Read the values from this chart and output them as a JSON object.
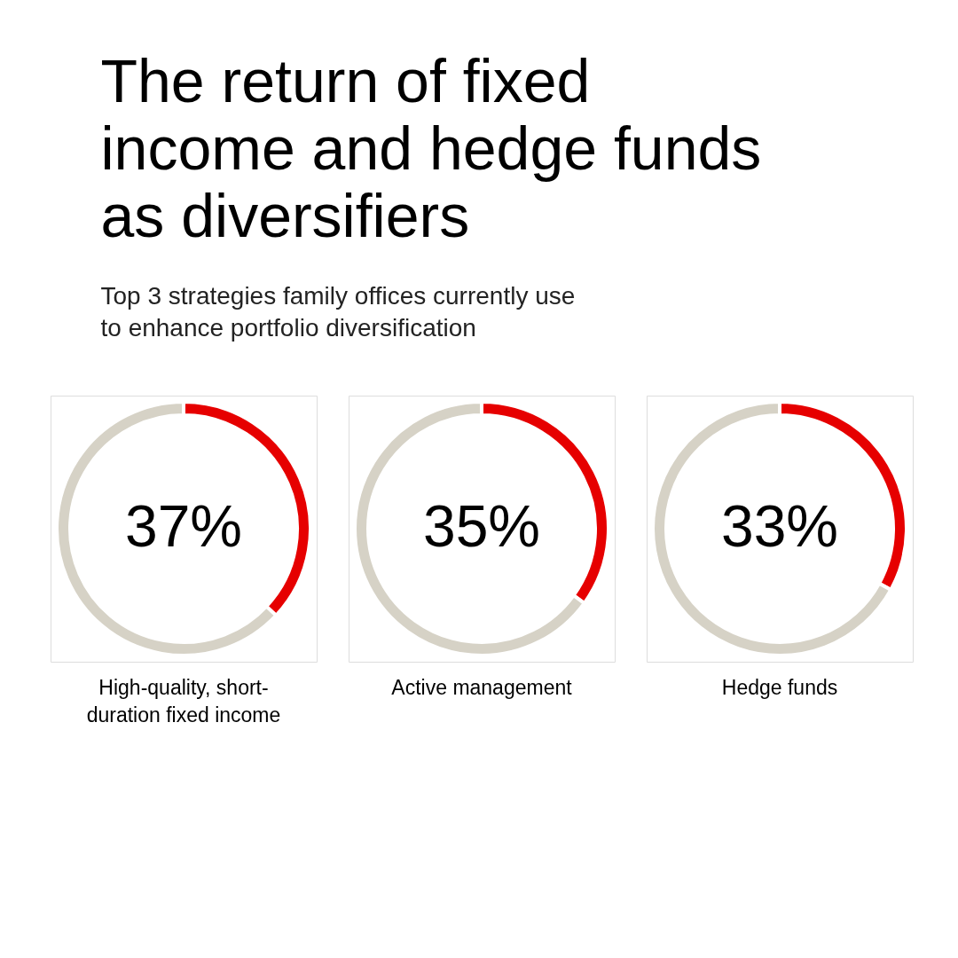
{
  "chart_data": [
    {
      "type": "donut",
      "title": "The return of fixed income and hedge funds as diversifiers",
      "subtitle": "Top 3 strategies family offices currently use to enhance portfolio diversification",
      "categories": [
        null,
        null
      ],
      "values": [
        37,
        63
      ],
      "colors": [
        "#e60000",
        "#d6d2c6"
      ],
      "value_labels": [
        "37%",
        null
      ],
      "xlabel": "High-quality, short-duration fixed income"
    },
    {
      "type": "donut",
      "categories": [
        null,
        null
      ],
      "values": [
        35,
        65
      ],
      "colors": [
        "#e60000",
        "#d6d2c6"
      ],
      "value_labels": [
        "35%",
        null
      ],
      "xlabel": "Active management"
    },
    {
      "type": "donut",
      "categories": [
        null,
        null
      ],
      "values": [
        33,
        67
      ],
      "colors": [
        "#e60000",
        "#d6d2c6"
      ],
      "value_labels": [
        "33%",
        null
      ],
      "xlabel": "Hedge funds"
    }
  ]
}
